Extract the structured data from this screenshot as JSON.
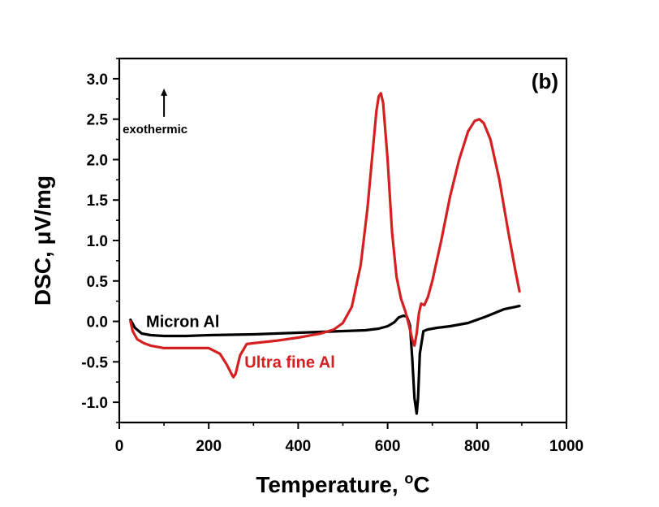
{
  "chart_data": {
    "type": "line",
    "panel_label": "(b)",
    "title": "",
    "xlabel": "Temperature, ",
    "xlabel_sup": "o",
    "xlabel_unit": "C",
    "ylabel": "DSC, μV/mg",
    "xlim": [
      0,
      1000
    ],
    "ylim": [
      -1.25,
      3.25
    ],
    "xticks": [
      0,
      200,
      400,
      600,
      800,
      1000
    ],
    "xtick_labels": [
      "0",
      "200",
      "400",
      "600",
      "800",
      "1000"
    ],
    "yticks": [
      -1.0,
      -0.5,
      0.0,
      0.5,
      1.0,
      1.5,
      2.0,
      2.5,
      3.0
    ],
    "ytick_labels": [
      "-1.0",
      "-0.5",
      "0.0",
      "0.5",
      "1.0",
      "1.5",
      "2.0",
      "2.5",
      "3.0"
    ],
    "grid": false,
    "annotations": [
      {
        "text": "exothermic",
        "arrow": "up",
        "x": 100,
        "y": 2.85
      }
    ],
    "series": [
      {
        "name": "Micron Al",
        "color": "#000000",
        "label_x": 60,
        "label_y": 0.0,
        "x": [
          25,
          35,
          50,
          70,
          100,
          150,
          200,
          300,
          400,
          500,
          550,
          580,
          600,
          615,
          625,
          635,
          643,
          650,
          655,
          660,
          665,
          668,
          672,
          680,
          690,
          710,
          740,
          780,
          820,
          860,
          895
        ],
        "y": [
          0.02,
          -0.08,
          -0.15,
          -0.17,
          -0.18,
          -0.18,
          -0.17,
          -0.16,
          -0.14,
          -0.12,
          -0.11,
          -0.09,
          -0.06,
          -0.01,
          0.05,
          0.07,
          0.06,
          -0.05,
          -0.45,
          -0.95,
          -1.14,
          -0.95,
          -0.4,
          -0.12,
          -0.1,
          -0.08,
          -0.06,
          -0.02,
          0.06,
          0.15,
          0.19
        ]
      },
      {
        "name": "Ultra fine Al",
        "color": "#d42020",
        "label_x": 280,
        "label_y": -0.5,
        "x": [
          25,
          30,
          40,
          55,
          70,
          100,
          150,
          200,
          225,
          240,
          250,
          255,
          260,
          270,
          285,
          300,
          350,
          400,
          450,
          480,
          500,
          520,
          540,
          555,
          565,
          575,
          580,
          585,
          590,
          600,
          610,
          620,
          630,
          640,
          648,
          655,
          660,
          665,
          670,
          675,
          682,
          690,
          700,
          720,
          740,
          760,
          780,
          795,
          805,
          815,
          830,
          850,
          870,
          885,
          895
        ],
        "y": [
          0.0,
          -0.12,
          -0.22,
          -0.27,
          -0.3,
          -0.33,
          -0.33,
          -0.33,
          -0.4,
          -0.53,
          -0.64,
          -0.69,
          -0.65,
          -0.42,
          -0.28,
          -0.27,
          -0.24,
          -0.2,
          -0.15,
          -0.1,
          -0.02,
          0.18,
          0.7,
          1.4,
          2.0,
          2.6,
          2.78,
          2.82,
          2.7,
          2.0,
          1.1,
          0.55,
          0.28,
          0.12,
          -0.05,
          -0.22,
          -0.3,
          -0.15,
          0.1,
          0.22,
          0.2,
          0.3,
          0.5,
          1.0,
          1.55,
          2.0,
          2.35,
          2.48,
          2.5,
          2.45,
          2.25,
          1.75,
          1.1,
          0.65,
          0.37
        ]
      }
    ]
  }
}
